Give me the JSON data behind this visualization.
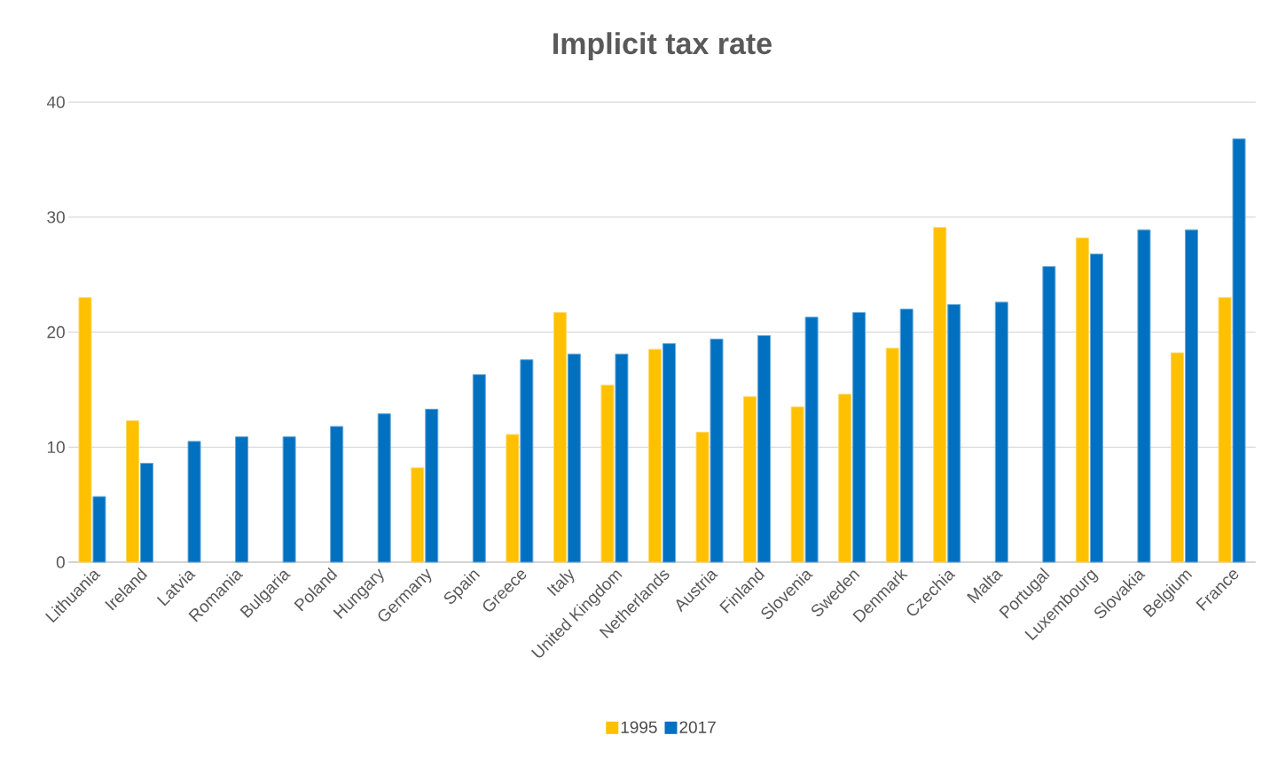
{
  "chart_data": {
    "type": "bar",
    "title": "Implicit tax rate",
    "categories": [
      "Lithuania",
      "Ireland",
      "Latvia",
      "Romania",
      "Bulgaria",
      "Poland",
      "Hungary",
      "Germany",
      "Spain",
      "Greece",
      "Italy",
      "United Kingdom",
      "Netherlands",
      "Austria",
      "Finland",
      "Slovenia",
      "Sweden",
      "Denmark",
      "Czechia",
      "Malta",
      "Portugal",
      "Luxembourg",
      "Slovakia",
      "Belgium",
      "France"
    ],
    "series": [
      {
        "name": "1995",
        "color": "#ffc000",
        "values": [
          23.0,
          12.3,
          null,
          null,
          null,
          null,
          null,
          8.2,
          null,
          11.1,
          21.7,
          15.4,
          18.5,
          11.3,
          14.4,
          13.5,
          14.6,
          18.6,
          29.1,
          null,
          null,
          28.2,
          null,
          18.2,
          23.0
        ]
      },
      {
        "name": "2017",
        "color": "#0070c0",
        "values": [
          5.7,
          8.6,
          10.5,
          10.9,
          10.9,
          11.8,
          12.9,
          13.3,
          16.3,
          17.6,
          18.1,
          18.1,
          19.0,
          19.4,
          19.7,
          21.3,
          21.7,
          22.0,
          22.4,
          22.6,
          25.7,
          26.8,
          28.9,
          28.9,
          36.8
        ]
      }
    ],
    "ylim": [
      0,
      40
    ],
    "yticks": [
      0,
      10,
      20,
      30,
      40
    ],
    "grid": "y",
    "legend": "bottom"
  }
}
